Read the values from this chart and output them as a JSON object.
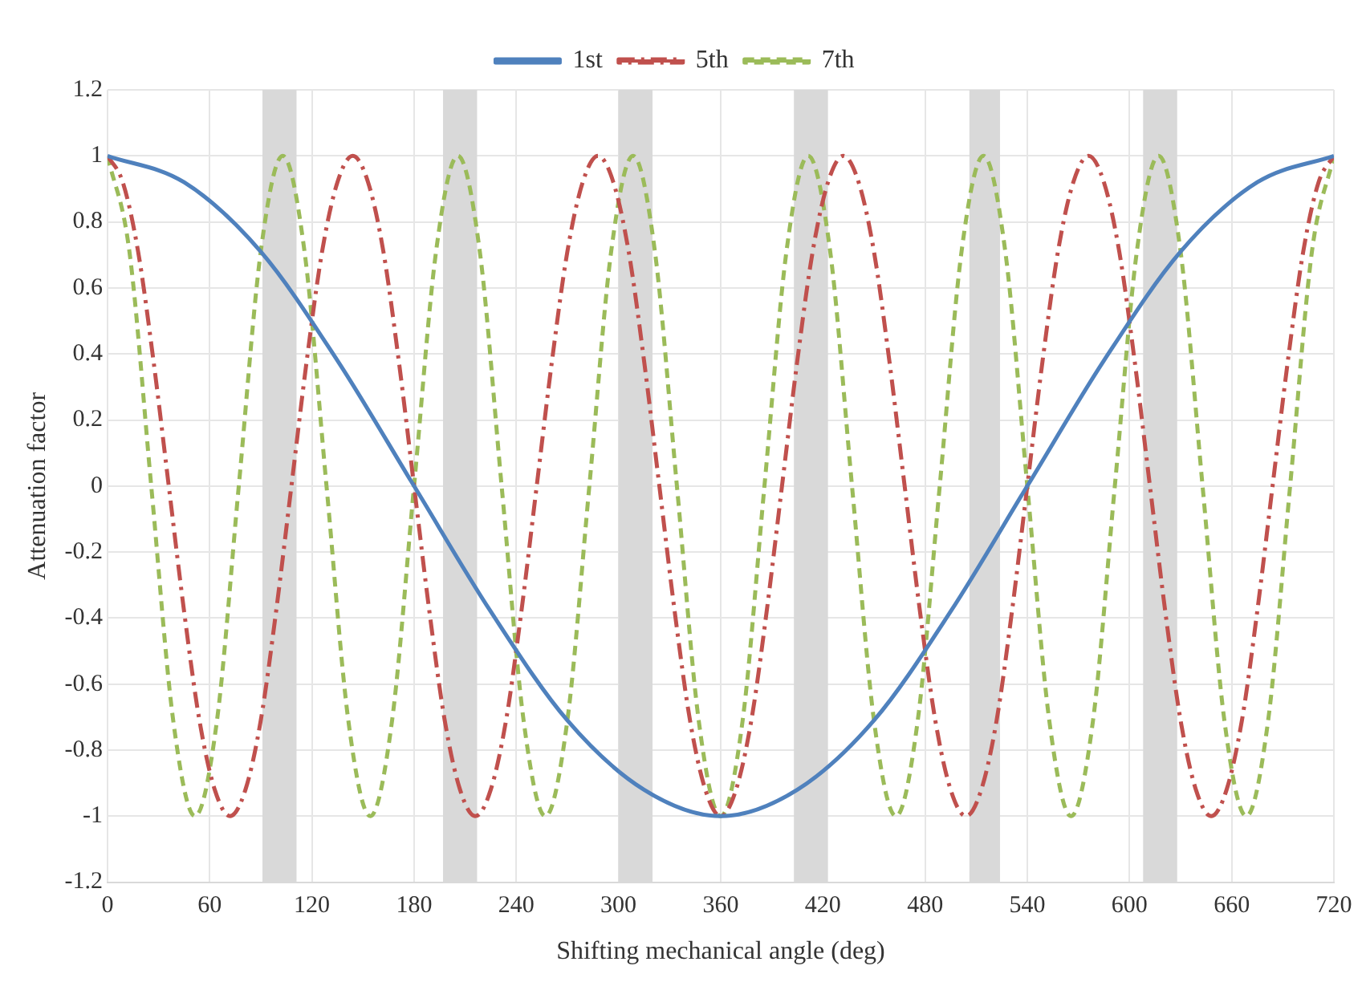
{
  "chart_data": {
    "type": "line",
    "xlabel": "Shifting mechanical angle (deg)",
    "ylabel": "Attenuation factor",
    "xlim": [
      0,
      720
    ],
    "xticks": [
      0,
      60,
      120,
      180,
      240,
      300,
      360,
      420,
      480,
      540,
      600,
      660,
      720
    ],
    "ylim": [
      -1.2,
      1.2
    ],
    "yticks": [
      -1.2,
      -1,
      -0.8,
      -0.6,
      -0.4,
      -0.2,
      0,
      0.2,
      0.4,
      0.6,
      0.8,
      1,
      1.2
    ],
    "grid": true,
    "legend": "top",
    "marker": "none",
    "bands": [
      {
        "axis": "x",
        "from": 91,
        "to": 111,
        "color": "#d9d9d9"
      },
      {
        "axis": "x",
        "from": 197,
        "to": 217,
        "color": "#d9d9d9"
      },
      {
        "axis": "x",
        "from": 300,
        "to": 320,
        "color": "#d9d9d9"
      },
      {
        "axis": "x",
        "from": 403,
        "to": 423,
        "color": "#d9d9d9"
      },
      {
        "axis": "x",
        "from": 506,
        "to": 524,
        "color": "#d9d9d9"
      },
      {
        "axis": "x",
        "from": 608,
        "to": 628,
        "color": "#d9d9d9"
      }
    ],
    "series": [
      {
        "name": "1st",
        "color": "#4f81bd",
        "line_style": "solid",
        "x": [
          0,
          45,
          90,
          135,
          180,
          225,
          270,
          315,
          360,
          405,
          450,
          495,
          540,
          585,
          630,
          675,
          720
        ],
        "values": [
          1,
          0.92,
          0.71,
          0.38,
          0,
          -0.38,
          -0.71,
          -0.92,
          -1,
          -0.92,
          -0.71,
          -0.38,
          0,
          0.38,
          0.71,
          0.92,
          1
        ]
      },
      {
        "name": "5th",
        "color": "#c0504d",
        "line_style": "dashed",
        "x": [
          0,
          9,
          18,
          27,
          36,
          45,
          54,
          63,
          72,
          81,
          90,
          99,
          108,
          117,
          126,
          135,
          144,
          153,
          162,
          171,
          180,
          189,
          198,
          207,
          216,
          225,
          234,
          243,
          252,
          261,
          270,
          279,
          288,
          297,
          306,
          315,
          324,
          333,
          342,
          351,
          360,
          369,
          378,
          387,
          396,
          405,
          414,
          423,
          432,
          441,
          450,
          459,
          468,
          477,
          486,
          495,
          504,
          513,
          522,
          531,
          540,
          549,
          558,
          567,
          576,
          585,
          594,
          603,
          612,
          621,
          630,
          639,
          648,
          657,
          666,
          675,
          684,
          693,
          702,
          711,
          720
        ],
        "values": [
          1,
          0.92,
          0.71,
          0.38,
          0,
          -0.38,
          -0.71,
          -0.92,
          -1,
          -0.92,
          -0.71,
          -0.38,
          0,
          0.38,
          0.71,
          0.92,
          1,
          0.92,
          0.71,
          0.38,
          0,
          -0.38,
          -0.71,
          -0.92,
          -1,
          -0.92,
          -0.71,
          -0.38,
          0,
          0.38,
          0.71,
          0.92,
          1,
          0.92,
          0.71,
          0.38,
          0,
          -0.38,
          -0.71,
          -0.92,
          -1,
          -0.92,
          -0.71,
          -0.38,
          0,
          0.38,
          0.71,
          0.92,
          1,
          0.92,
          0.71,
          0.38,
          0,
          -0.38,
          -0.71,
          -0.92,
          -1,
          -0.92,
          -0.71,
          -0.38,
          0,
          0.38,
          0.71,
          0.92,
          1,
          0.92,
          0.71,
          0.38,
          0,
          -0.38,
          -0.71,
          -0.92,
          -1,
          -0.92,
          -0.71,
          -0.38,
          0,
          0.38,
          0.71,
          0.92,
          1
        ]
      },
      {
        "name": "7th",
        "color": "#9bbb59",
        "line_style": "dotted",
        "x": [
          0,
          12.9,
          25.7,
          38.6,
          51.4,
          64.3,
          77.1,
          90,
          102.9,
          115.7,
          128.6,
          141.4,
          154.3,
          167.1,
          180,
          192.9,
          205.7,
          218.6,
          231.4,
          244.3,
          257.1,
          270,
          282.9,
          295.7,
          308.6,
          321.4,
          334.3,
          347.1,
          360,
          372.9,
          385.7,
          398.6,
          411.4,
          424.3,
          437.1,
          450,
          462.9,
          475.7,
          488.6,
          501.4,
          514.3,
          527.1,
          540,
          552.9,
          565.7,
          578.6,
          591.4,
          604.3,
          617.1,
          630,
          642.9,
          655.7,
          668.6,
          681.4,
          694.3,
          707.1,
          720
        ],
        "values": [
          1,
          0.71,
          0,
          -0.71,
          -1,
          -0.71,
          0,
          0.71,
          1,
          0.71,
          0,
          -0.71,
          -1,
          -0.71,
          0,
          0.71,
          1,
          0.71,
          0,
          -0.71,
          -1,
          -0.71,
          0,
          0.71,
          1,
          0.71,
          0,
          -0.71,
          -1,
          -0.71,
          0,
          0.71,
          1,
          0.71,
          0,
          -0.71,
          -1,
          -0.71,
          0,
          0.71,
          1,
          0.71,
          0,
          -0.71,
          -1,
          -0.71,
          0,
          0.71,
          1,
          0.71,
          0,
          -0.71,
          -1,
          -0.71,
          0,
          0.71,
          1
        ]
      }
    ]
  }
}
